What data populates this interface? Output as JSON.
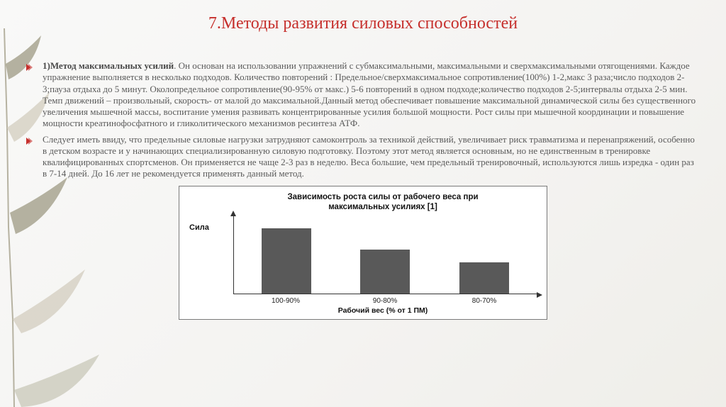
{
  "title": "7.Методы развития силовых способностей",
  "bullet_color": "#c62f2c",
  "paragraphs": [
    {
      "lead": "1)Метод максимальных усилий",
      "text": ". Он основан на использовании упражнений с субмаксимальными, максимальными и сверхмаксимальными отягощениями. Каждое упражнение выполняется в несколько подходов. Количество повторений : Предельное/сверхмаксимальное сопротивление(100%) 1-2,макс 3 раза;число подходов 2-3;пауза отдыха до 5 минут. Околопредельное сопротивление(90-95% от макс.) 5-6 повторений в одном подходе;количество подходов 2-5;интервалы отдыха 2-5 мин. Темп движений – произвольный, скорость- от малой до максимальной.Данный метод обеспечивает повышение максимальной динамической силы без существенного увеличения мышечной массы, воспитание умения развивать концентрированные усилия большой мощности. Рост силы при мышечной координации и повышение мощности креатинофосфатного и гликолитического механизмов ресинтеза АТФ."
    },
    {
      "lead": "",
      "text": "Следует иметь ввиду, что предельные силовые нагрузки затрудняют самоконтроль за техникой действий, увеличивает риск травматизма и перенапряжений, особенно в детском возрасте и у начинающих специализированную силовую подготовку. Поэтому этот метод является основным, но не единственным в тренировке квалифицированных спортсменов. Он применяется не чаще 2-3 раз в неделю.  Веса большие, чем предельный тренировочный, используются лишь изредка - один раз в 7-14 дней. До 16 лет не рекомендуется применять данный метод."
    }
  ],
  "chart": {
    "type": "bar",
    "title_line1": "Зависимость роста силы от рабочего веса при",
    "title_line2": "максимальных усилиях [1]",
    "y_label": "Сила",
    "x_label": "Рабочий вес (% от 1 ПМ)",
    "categories": [
      "100-90%",
      "90-80%",
      "80-70%"
    ],
    "values": [
      92,
      62,
      44
    ],
    "ymax": 100,
    "bar_color": "#595959",
    "axis_color": "#333333",
    "background_color": "#ffffff",
    "border_color": "#7a7a7a",
    "tick_fontsize": 10,
    "title_fontsize": 11.5,
    "label_fontsize": 10.5,
    "font_family": "Arial"
  },
  "decoration": {
    "leaf_color_light": "#d8d4c8",
    "leaf_color_dark": "#a8a491",
    "branch_color": "#b6b2a1"
  }
}
